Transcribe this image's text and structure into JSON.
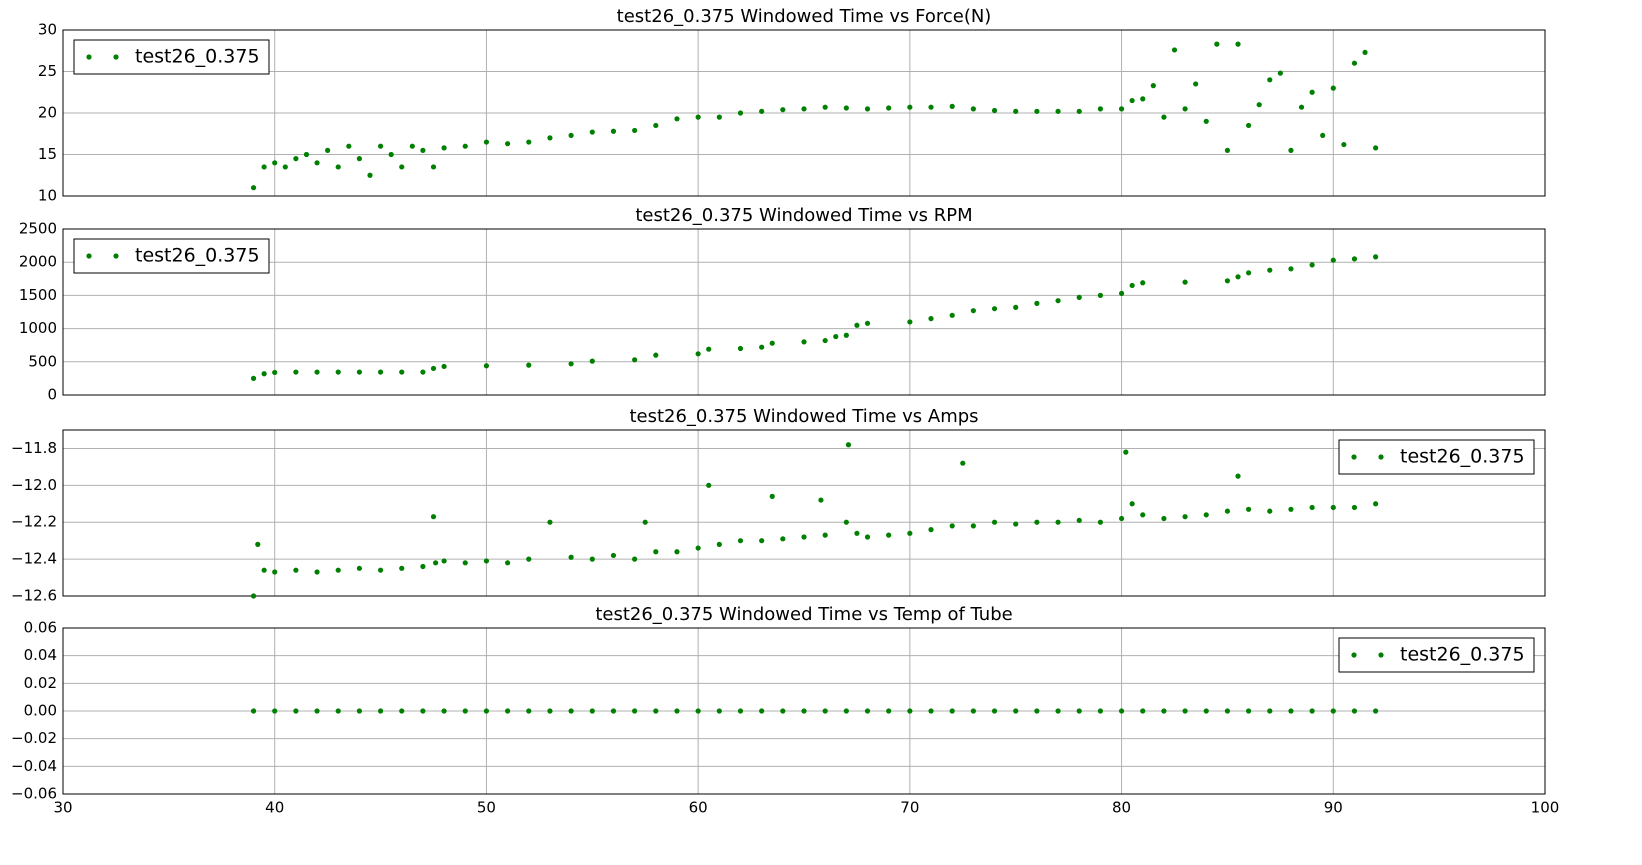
{
  "chart_data": [
    {
      "type": "scatter",
      "title": "test26_0.375 Windowed Time vs Force(N)",
      "x": [
        39,
        39.5,
        40,
        40.5,
        41,
        41.5,
        42,
        42.5,
        43,
        43.5,
        44,
        44.5,
        45,
        45.5,
        46,
        46.5,
        47,
        47.5,
        48,
        49,
        50,
        51,
        52,
        53,
        54,
        55,
        56,
        57,
        58,
        59,
        60,
        61,
        62,
        63,
        64,
        65,
        66,
        67,
        68,
        69,
        70,
        71,
        72,
        73,
        74,
        75,
        76,
        77,
        78,
        79,
        80,
        80.5,
        81,
        81.5,
        82,
        82.5,
        83,
        83.5,
        84,
        84.5,
        85,
        85.5,
        86,
        86.5,
        87,
        87.5,
        88,
        88.5,
        89,
        89.5,
        90,
        90.5,
        91,
        91.5,
        92
      ],
      "series": [
        {
          "name": "test26_0.375",
          "color": "#008000",
          "values": [
            11,
            13.5,
            14,
            13.5,
            14.5,
            15,
            14,
            15.5,
            13.5,
            16,
            14.5,
            12.5,
            16,
            15,
            13.5,
            16,
            15.5,
            13.5,
            15.8,
            16,
            16.5,
            16.3,
            16.5,
            17,
            17.3,
            17.7,
            17.8,
            17.9,
            18.5,
            19.3,
            19.5,
            19.5,
            20,
            20.2,
            20.4,
            20.5,
            20.7,
            20.6,
            20.5,
            20.6,
            20.7,
            20.7,
            20.8,
            20.5,
            20.3,
            20.2,
            20.2,
            20.2,
            20.2,
            20.5,
            20.5,
            21.5,
            21.7,
            23.3,
            19.5,
            27.6,
            20.5,
            23.5,
            19,
            28.3,
            15.5,
            28.3,
            18.5,
            21,
            24,
            24.8,
            15.5,
            20.7,
            22.5,
            17.3,
            23,
            16.2,
            26,
            27.3,
            15.8
          ]
        }
      ],
      "xlim": [
        30,
        100
      ],
      "xticks": [
        30,
        40,
        50,
        60,
        70,
        80,
        90,
        100
      ],
      "ylim": [
        10,
        30
      ],
      "yticks": [
        10,
        15,
        20,
        25,
        30
      ],
      "grid": true,
      "legend": "upper left"
    },
    {
      "type": "scatter",
      "title": "test26_0.375 Windowed Time vs RPM",
      "x": [
        39,
        39.5,
        40,
        41,
        42,
        43,
        44,
        45,
        46,
        47,
        47.5,
        48,
        50,
        52,
        54,
        55,
        57,
        58,
        60,
        60.5,
        62,
        63,
        63.5,
        65,
        66,
        66.5,
        67,
        67.5,
        68,
        70,
        71,
        72,
        73,
        74,
        75,
        76,
        77,
        78,
        79,
        80,
        80.5,
        81,
        83,
        85,
        85.5,
        86,
        87,
        88,
        89,
        90,
        91,
        92
      ],
      "series": [
        {
          "name": "test26_0.375",
          "color": "#008000",
          "values": [
            250,
            320,
            340,
            345,
            345,
            345,
            345,
            345,
            345,
            345,
            400,
            430,
            440,
            450,
            470,
            510,
            530,
            600,
            620,
            690,
            700,
            720,
            780,
            800,
            820,
            880,
            900,
            1050,
            1080,
            1100,
            1150,
            1200,
            1270,
            1300,
            1320,
            1380,
            1420,
            1470,
            1500,
            1530,
            1650,
            1690,
            1700,
            1720,
            1780,
            1840,
            1880,
            1900,
            1960,
            2030,
            2050,
            2080
          ]
        }
      ],
      "xlim": [
        30,
        100
      ],
      "xticks": [
        30,
        40,
        50,
        60,
        70,
        80,
        90,
        100
      ],
      "ylim": [
        0,
        2500
      ],
      "yticks": [
        0,
        500,
        1000,
        1500,
        2000,
        2500
      ],
      "grid": true,
      "legend": "upper left"
    },
    {
      "type": "scatter",
      "title": "test26_0.375 Windowed Time vs Amps",
      "x": [
        39,
        39.2,
        39.5,
        40,
        41,
        42,
        43,
        44,
        45,
        46,
        47,
        47.5,
        47.6,
        48,
        49,
        50,
        51,
        52,
        53,
        54,
        55,
        56,
        57,
        57.5,
        58,
        59,
        60,
        60.5,
        61,
        62,
        63,
        63.5,
        64,
        65,
        65.8,
        66,
        67,
        67.1,
        67.5,
        68,
        69,
        70,
        71,
        72,
        72.5,
        73,
        74,
        75,
        76,
        77,
        78,
        79,
        80,
        80.2,
        80.5,
        81,
        82,
        83,
        84,
        85,
        85.5,
        86,
        87,
        88,
        89,
        90,
        91,
        92
      ],
      "series": [
        {
          "name": "test26_0.375",
          "color": "#008000",
          "values": [
            -12.6,
            -12.32,
            -12.46,
            -12.47,
            -12.46,
            -12.47,
            -12.46,
            -12.45,
            -12.46,
            -12.45,
            -12.44,
            -12.17,
            -12.42,
            -12.41,
            -12.42,
            -12.41,
            -12.42,
            -12.4,
            -12.2,
            -12.39,
            -12.4,
            -12.38,
            -12.4,
            -12.2,
            -12.36,
            -12.36,
            -12.34,
            -12.0,
            -12.32,
            -12.3,
            -12.3,
            -12.06,
            -12.29,
            -12.28,
            -12.08,
            -12.27,
            -12.2,
            -11.78,
            -12.26,
            -12.28,
            -12.27,
            -12.26,
            -12.24,
            -12.22,
            -11.88,
            -12.22,
            -12.2,
            -12.21,
            -12.2,
            -12.2,
            -12.19,
            -12.2,
            -12.18,
            -11.82,
            -12.1,
            -12.16,
            -12.18,
            -12.17,
            -12.16,
            -12.14,
            -11.95,
            -12.13,
            -12.14,
            -12.13,
            -12.12,
            -12.12,
            -12.12,
            -12.1
          ]
        }
      ],
      "xlim": [
        30,
        100
      ],
      "xticks": [
        30,
        40,
        50,
        60,
        70,
        80,
        90,
        100
      ],
      "ylim": [
        -12.6,
        -11.7
      ],
      "yticks": [
        {
          "value": -12.6,
          "label": "−12.6"
        },
        {
          "value": -12.4,
          "label": "−12.4"
        },
        {
          "value": -12.2,
          "label": "−12.2"
        },
        {
          "value": -12.0,
          "label": "−12.0"
        },
        {
          "value": -11.8,
          "label": "−11.8"
        }
      ],
      "grid": true,
      "legend": "upper right"
    },
    {
      "type": "scatter",
      "title": "test26_0.375 Windowed Time vs Temp of Tube",
      "x": [
        39,
        40,
        41,
        42,
        43,
        44,
        45,
        46,
        47,
        48,
        49,
        50,
        51,
        52,
        53,
        54,
        55,
        56,
        57,
        58,
        59,
        60,
        61,
        62,
        63,
        64,
        65,
        66,
        67,
        68,
        69,
        70,
        71,
        72,
        73,
        74,
        75,
        76,
        77,
        78,
        79,
        80,
        81,
        82,
        83,
        84,
        85,
        86,
        87,
        88,
        89,
        90,
        91,
        92
      ],
      "series": [
        {
          "name": "test26_0.375",
          "color": "#008000",
          "values": [
            0,
            0,
            0,
            0,
            0,
            0,
            0,
            0,
            0,
            0,
            0,
            0,
            0,
            0,
            0,
            0,
            0,
            0,
            0,
            0,
            0,
            0,
            0,
            0,
            0,
            0,
            0,
            0,
            0,
            0,
            0,
            0,
            0,
            0,
            0,
            0,
            0,
            0,
            0,
            0,
            0,
            0,
            0,
            0,
            0,
            0,
            0,
            0,
            0,
            0,
            0,
            0,
            0,
            0
          ]
        }
      ],
      "xlim": [
        30,
        100
      ],
      "xticks": [
        30,
        40,
        50,
        60,
        70,
        80,
        90,
        100
      ],
      "ylim": [
        -0.06,
        0.06
      ],
      "yticks": [
        {
          "value": -0.06,
          "label": "−0.06"
        },
        {
          "value": -0.04,
          "label": "−0.04"
        },
        {
          "value": -0.02,
          "label": "−0.02"
        },
        {
          "value": 0,
          "label": "0.00"
        },
        0.02,
        0.04,
        0.06
      ],
      "grid": true,
      "legend": "upper right"
    }
  ]
}
